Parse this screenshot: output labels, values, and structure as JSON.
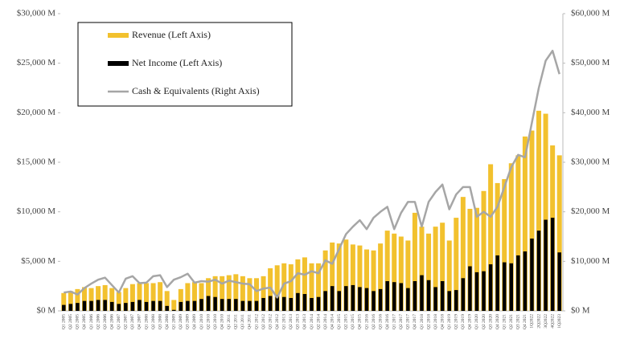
{
  "chart_data": {
    "type": "bar_line",
    "categories": [
      "Q1 2005",
      "Q2 2005",
      "Q3 2005",
      "Q4 2005",
      "Q1 2006",
      "Q2 2006",
      "Q3 2006",
      "Q4 2006",
      "Q1 2007",
      "Q2 2007",
      "Q3 2007",
      "Q4 2007",
      "Q1 2008",
      "Q2 2008",
      "Q3 2008",
      "Q4 2008",
      "Q1 2009",
      "Q2 2009",
      "Q3 2009",
      "Q4 2009",
      "Q1 2010",
      "Q2 2010",
      "Q3 2010",
      "Q4 2010",
      "Q1 2011",
      "Q2 2011",
      "Q3 2011",
      "Q4 2011",
      "Q1 2012",
      "Q2 2012",
      "Q3 2012",
      "Q4 2012",
      "Q1 2013",
      "Q2 2013",
      "Q3 2013",
      "Q4 2013",
      "Q1 2014",
      "Q2 2014",
      "Q3 2014",
      "Q4 2014",
      "Q1 2015",
      "Q2 2015",
      "Q3 2015",
      "Q4 2015",
      "Q1 2016",
      "Q2 2016",
      "Q3 2016",
      "Q4 2016",
      "Q1 2017",
      "Q2 2017",
      "Q3 2017",
      "Q4 2017",
      "Q1 2018",
      "Q2 2018",
      "Q3 2018",
      "Q4 2018",
      "Q1 2019",
      "Q2 2019",
      "Q3 2019",
      "Q4 2019",
      "Q1 2020",
      "Q2 2020",
      "Q3 2020",
      "Q4 2020",
      "Q1 2021",
      "Q2 2021",
      "Q3 2021",
      "Q4 2021",
      "1Q2022",
      "2Q2022",
      "3Q2022",
      "4Q2022",
      "1Q2023"
    ],
    "series": [
      {
        "name": "Revenue (Left Axis)",
        "color": "#f2c12e",
        "kind": "bar",
        "values": [
          1800,
          2000,
          2200,
          2400,
          2300,
          2500,
          2600,
          2300,
          1900,
          2300,
          2700,
          2800,
          2800,
          2800,
          2900,
          2000,
          1100,
          2200,
          2800,
          2900,
          2800,
          3300,
          3500,
          3500,
          3600,
          3700,
          3500,
          3300,
          3300,
          3500,
          4300,
          4600,
          4800,
          4700,
          5200,
          5400,
          4800,
          4800,
          6100,
          6900,
          6800,
          7200,
          6700,
          6600,
          6200,
          6100,
          6800,
          8100,
          7800,
          7500,
          7100,
          9900,
          8500,
          7800,
          8500,
          8900,
          7100,
          9400,
          11500,
          10300,
          10400,
          12100,
          14800,
          12900,
          13300,
          14900,
          15700,
          17600,
          18200,
          20200,
          19900,
          16700,
          15700
        ]
      },
      {
        "name": "Net Income (Left Axis)",
        "color": "#000000",
        "kind": "bar",
        "values": [
          600,
          700,
          800,
          1000,
          1000,
          1100,
          1100,
          900,
          700,
          800,
          900,
          1100,
          900,
          1000,
          1000,
          500,
          100,
          900,
          1000,
          1000,
          1200,
          1500,
          1400,
          1200,
          1200,
          1200,
          1000,
          1000,
          1000,
          1300,
          1500,
          1600,
          1400,
          1300,
          1800,
          1700,
          1300,
          1400,
          2000,
          2500,
          2000,
          2500,
          2600,
          2400,
          2300,
          2000,
          2200,
          3000,
          2900,
          2800,
          2300,
          3000,
          3600,
          3100,
          2400,
          3000,
          2000,
          2100,
          3300,
          4500,
          3900,
          4000,
          4700,
          5600,
          4900,
          4800,
          5600,
          6000,
          7300,
          8100,
          9200,
          9400,
          5900
        ]
      },
      {
        "name": "Cash & Equivalents (Right Axis)",
        "color": "#a6a6a6",
        "kind": "line",
        "axis": "y2",
        "values": [
          3700,
          3900,
          3300,
          4600,
          5500,
          6300,
          6700,
          5200,
          3700,
          6500,
          7000,
          5600,
          5700,
          7000,
          7200,
          4800,
          6300,
          6800,
          7500,
          5700,
          6000,
          5900,
          6300,
          5500,
          6100,
          5800,
          5500,
          5400,
          4000,
          4500,
          4700,
          2700,
          5500,
          6000,
          7600,
          7300,
          8000,
          7600,
          10200,
          9500,
          12500,
          15500,
          17000,
          18300,
          16500,
          18800,
          20000,
          21000,
          16500,
          19800,
          22000,
          22000,
          17000,
          22000,
          24000,
          25500,
          20500,
          23500,
          25000,
          25000,
          19000,
          20000,
          19000,
          21000,
          25000,
          29000,
          31500,
          31000,
          38000,
          45000,
          50500,
          52500,
          47800
        ]
      }
    ],
    "ylim": [
      0,
      30000
    ],
    "yticks": [
      {
        "value": 0,
        "label": "$0 M"
      },
      {
        "value": 5000,
        "label": "$5,000 M"
      },
      {
        "value": 10000,
        "label": "$10,000 M"
      },
      {
        "value": 15000,
        "label": "$15,000 M"
      },
      {
        "value": 20000,
        "label": "$20,000 M"
      },
      {
        "value": 25000,
        "label": "$25,000 M"
      },
      {
        "value": 30000,
        "label": "$30,000 M"
      }
    ],
    "y2lim": [
      0,
      60000
    ],
    "y2ticks": [
      {
        "value": 0,
        "label": "$0 M"
      },
      {
        "value": 10000,
        "label": "$10,000 M"
      },
      {
        "value": 20000,
        "label": "$20,000 M"
      },
      {
        "value": 30000,
        "label": "$30,000 M"
      },
      {
        "value": 40000,
        "label": "$40,000 M"
      },
      {
        "value": 50000,
        "label": "$50,000 M"
      },
      {
        "value": 60000,
        "label": "$60,000 M"
      }
    ],
    "legend": "top-left"
  }
}
